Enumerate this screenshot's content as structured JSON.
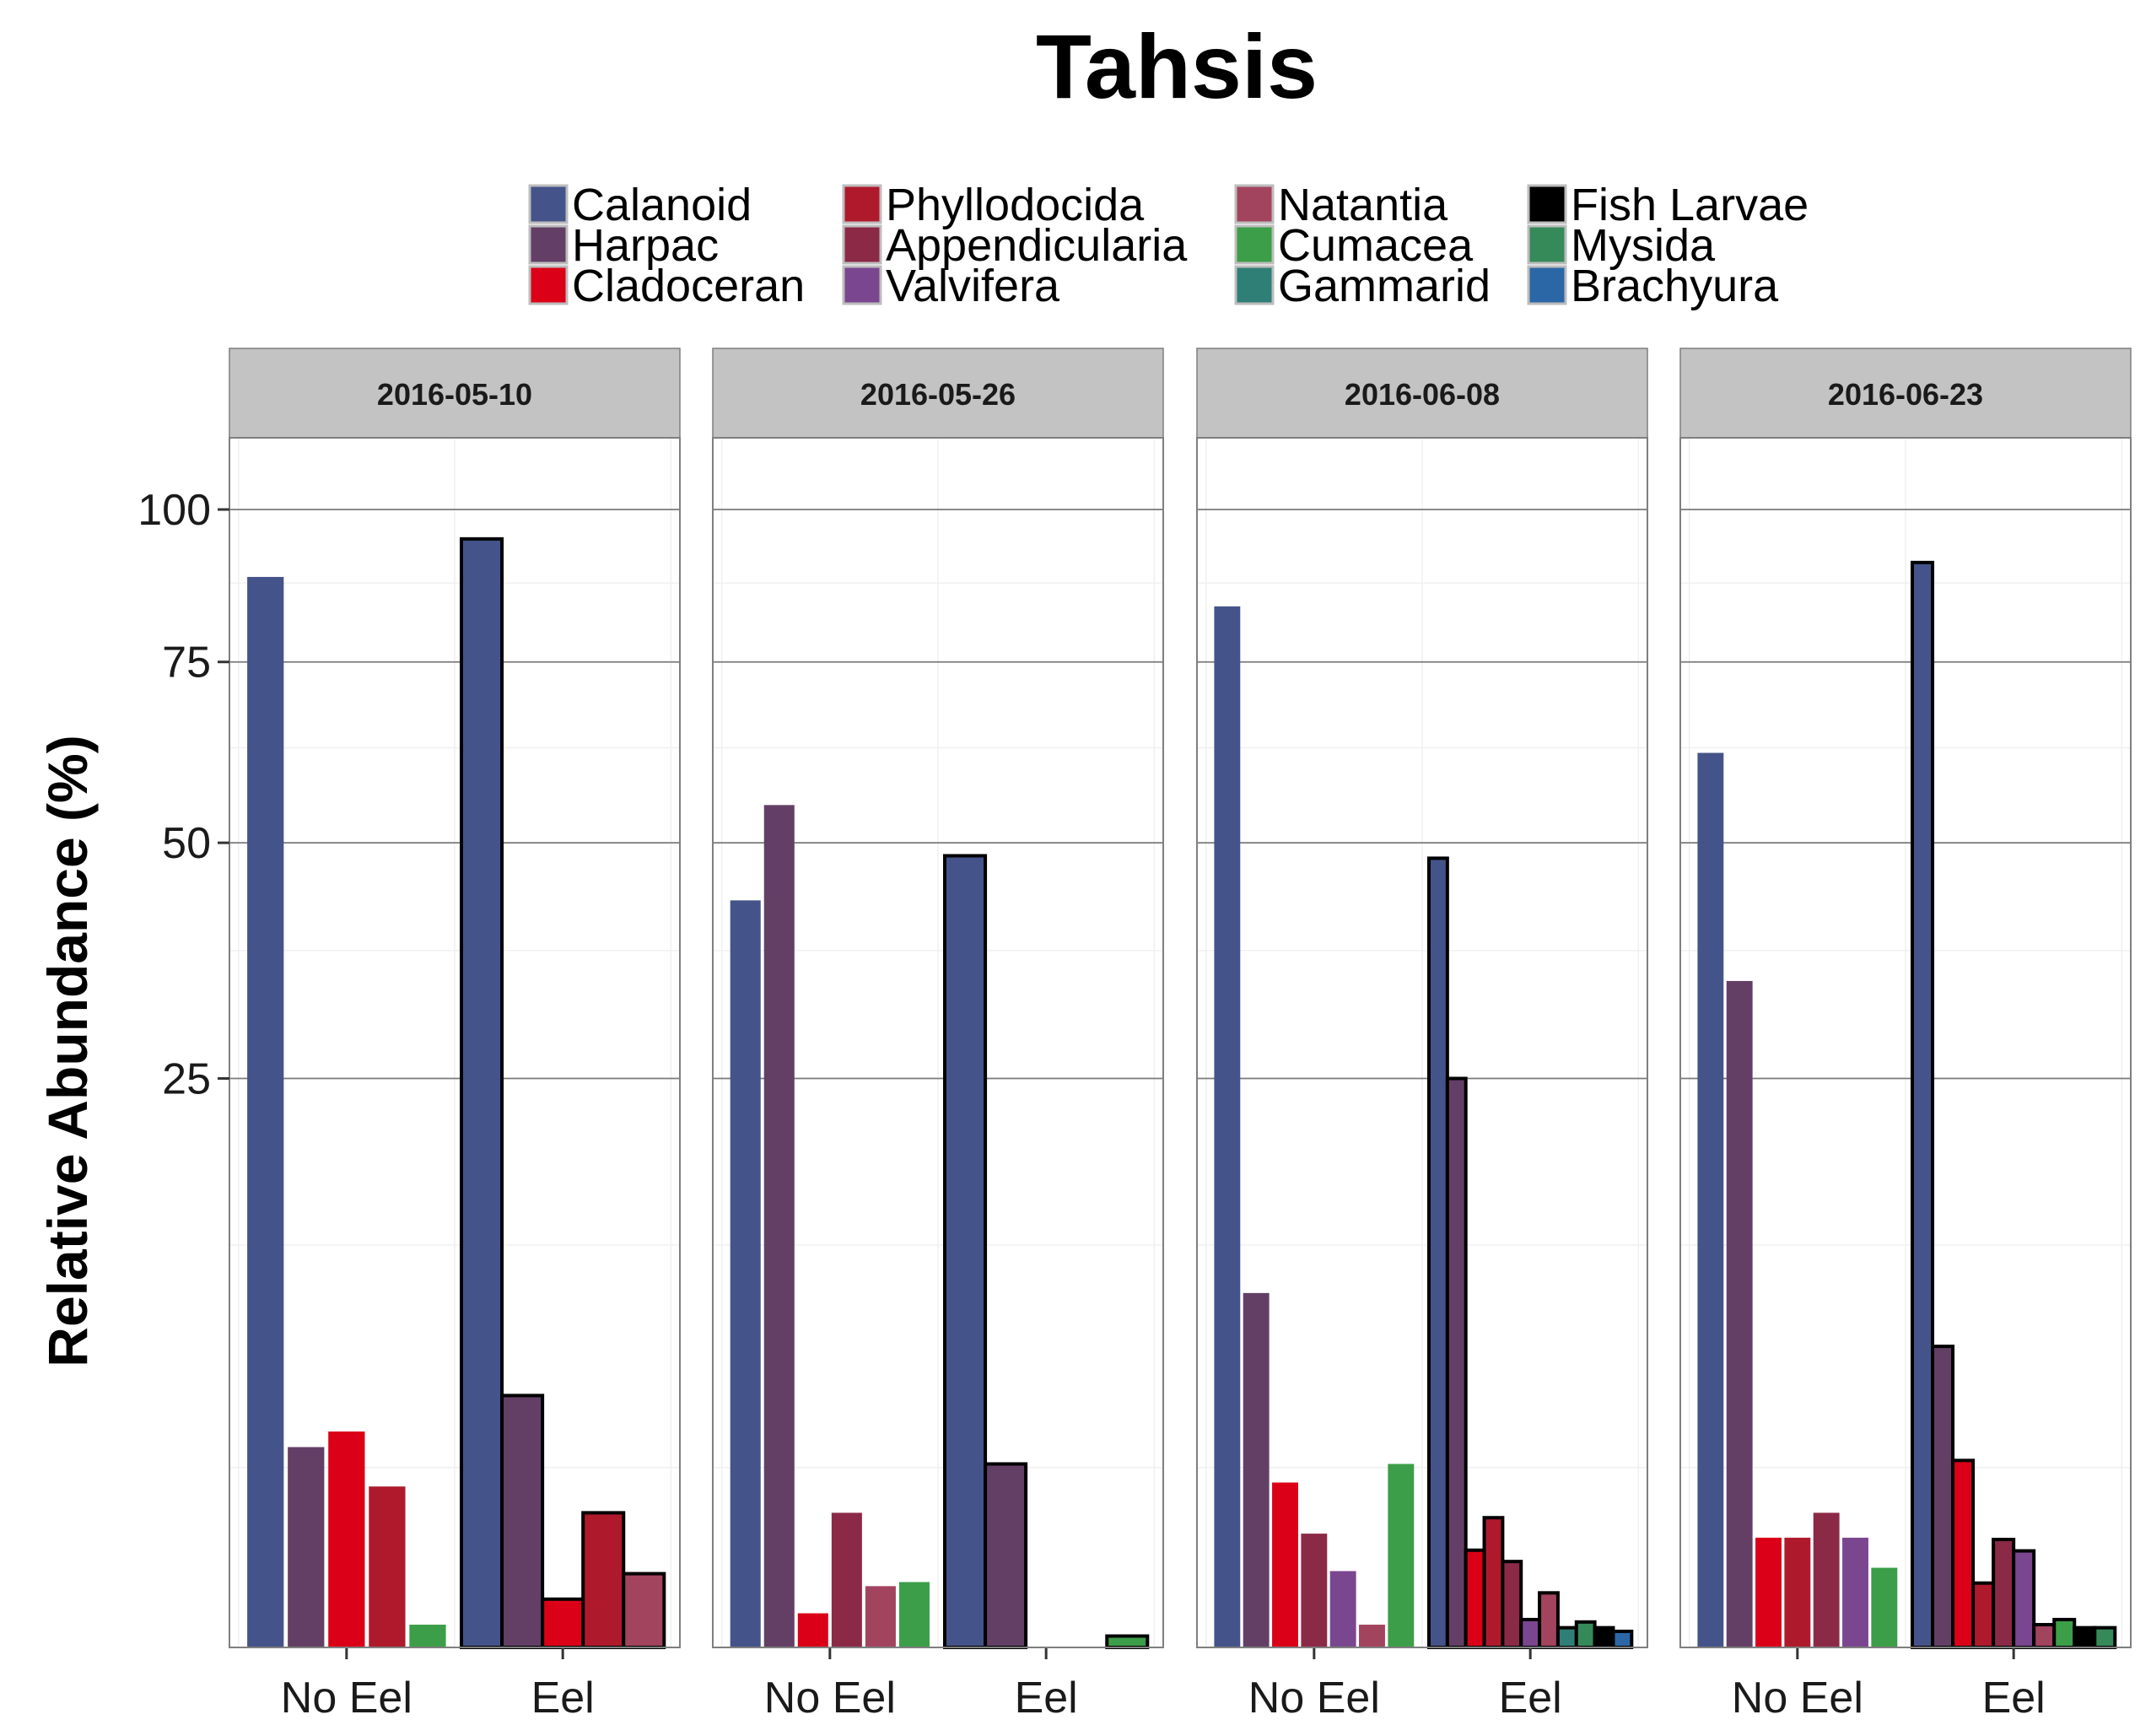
{
  "chart_data": {
    "type": "bar",
    "title": "Tahsis",
    "ylabel": "Relative Abundance (%)",
    "xlabel": "",
    "y_scale": "sqrt",
    "ylim": [
      0,
      113
    ],
    "y_ticks": [
      25,
      50,
      75,
      100
    ],
    "grid": true,
    "legend_position": "top",
    "categories": [
      "No Eel",
      "Eel"
    ],
    "taxa": [
      "Calanoid",
      "Harpac",
      "Cladoceran",
      "Phyllodocida",
      "Appendicularia",
      "Valvifera",
      "Natantia",
      "Cumacea",
      "Gammarid",
      "Fish Larvae",
      "Mysida",
      "Brachyura"
    ],
    "colors": {
      "Calanoid": "#44548a",
      "Harpac": "#633f66",
      "Cladoceran": "#db0018",
      "Phyllodocida": "#ae1a2c",
      "Appendicularia": "#8b2a47",
      "Valvifera": "#7b4690",
      "Natantia": "#a3445f",
      "Cumacea": "#3c9e48",
      "Gammarid": "#2f7f76",
      "Fish Larvae": "#000000",
      "Mysida": "#368a5a",
      "Brachyura": "#2b67a6"
    },
    "legend_columns": [
      [
        "Calanoid",
        "Harpac",
        "Cladoceran"
      ],
      [
        "Phyllodocida",
        "Appendicularia",
        "Valvifera"
      ],
      [
        "Natantia",
        "Cumacea",
        "Gammarid"
      ],
      [
        "Fish Larvae",
        "Mysida",
        "Brachyura"
      ]
    ],
    "panels": [
      {
        "label": "2016-05-10",
        "groups": [
          {
            "category": "No Eel",
            "outlined": false,
            "bars": [
              {
                "taxon": "Calanoid",
                "value": 88.5
              },
              {
                "taxon": "Harpac",
                "value": 3.1
              },
              {
                "taxon": "Cladoceran",
                "value": 3.6
              },
              {
                "taxon": "Phyllodocida",
                "value": 2.0
              },
              {
                "taxon": "Cumacea",
                "value": 0.04
              }
            ]
          },
          {
            "category": "Eel",
            "outlined": true,
            "bars": [
              {
                "taxon": "Calanoid",
                "value": 94.9
              },
              {
                "taxon": "Harpac",
                "value": 4.9
              },
              {
                "taxon": "Cladoceran",
                "value": 0.18
              },
              {
                "taxon": "Phyllodocida",
                "value": 1.4
              },
              {
                "taxon": "Natantia",
                "value": 0.42
              }
            ]
          }
        ]
      },
      {
        "label": "2016-05-26",
        "groups": [
          {
            "category": "No Eel",
            "outlined": false,
            "bars": [
              {
                "taxon": "Calanoid",
                "value": 43.1
              },
              {
                "taxon": "Harpac",
                "value": 54.8
              },
              {
                "taxon": "Cladoceran",
                "value": 0.09
              },
              {
                "taxon": "Appendicularia",
                "value": 1.4
              },
              {
                "taxon": "Natantia",
                "value": 0.29
              },
              {
                "taxon": "Cumacea",
                "value": 0.33
              }
            ]
          },
          {
            "category": "Eel",
            "outlined": true,
            "bars": [
              {
                "taxon": "Calanoid",
                "value": 48.4
              },
              {
                "taxon": "Harpac",
                "value": 2.6
              },
              {
                "taxon": "Cladoceran",
                "value": 0.0
              },
              {
                "taxon": "Phyllodocida",
                "value": 0.0
              },
              {
                "taxon": "Cumacea",
                "value": 0.01
              }
            ]
          }
        ]
      },
      {
        "label": "2016-06-08",
        "groups": [
          {
            "category": "No Eel",
            "outlined": false,
            "bars": [
              {
                "taxon": "Calanoid",
                "value": 83.7
              },
              {
                "taxon": "Harpac",
                "value": 9.7
              },
              {
                "taxon": "Cladoceran",
                "value": 2.1
              },
              {
                "taxon": "Appendicularia",
                "value": 1.0
              },
              {
                "taxon": "Valvifera",
                "value": 0.45
              },
              {
                "taxon": "Natantia",
                "value": 0.04
              },
              {
                "taxon": "Cumacea",
                "value": 2.6
              }
            ]
          },
          {
            "category": "Eel",
            "outlined": true,
            "bars": [
              {
                "taxon": "Calanoid",
                "value": 48.1
              },
              {
                "taxon": "Harpac",
                "value": 25.0
              },
              {
                "taxon": "Cladoceran",
                "value": 0.73
              },
              {
                "taxon": "Phyllodocida",
                "value": 1.3
              },
              {
                "taxon": "Appendicularia",
                "value": 0.57
              },
              {
                "taxon": "Valvifera",
                "value": 0.06
              },
              {
                "taxon": "Natantia",
                "value": 0.23
              },
              {
                "taxon": "Gammarid",
                "value": 0.03
              },
              {
                "taxon": "Mysida",
                "value": 0.05
              },
              {
                "taxon": "Fish Larvae",
                "value": 0.03
              },
              {
                "taxon": "Brachyura",
                "value": 0.02
              }
            ]
          }
        ]
      },
      {
        "label": "2016-06-23",
        "groups": [
          {
            "category": "No Eel",
            "outlined": false,
            "bars": [
              {
                "taxon": "Calanoid",
                "value": 61.8
              },
              {
                "taxon": "Harpac",
                "value": 34.3
              },
              {
                "taxon": "Cladoceran",
                "value": 0.93
              },
              {
                "taxon": "Phyllodocida",
                "value": 0.93
              },
              {
                "taxon": "Appendicularia",
                "value": 1.4
              },
              {
                "taxon": "Valvifera",
                "value": 0.93
              },
              {
                "taxon": "Cumacea",
                "value": 0.49
              }
            ]
          },
          {
            "category": "Eel",
            "outlined": true,
            "bars": [
              {
                "taxon": "Calanoid",
                "value": 90.9
              },
              {
                "taxon": "Harpac",
                "value": 7.0
              },
              {
                "taxon": "Cladoceran",
                "value": 2.7
              },
              {
                "taxon": "Phyllodocida",
                "value": 0.32
              },
              {
                "taxon": "Appendicularia",
                "value": 0.9
              },
              {
                "taxon": "Valvifera",
                "value": 0.72
              },
              {
                "taxon": "Natantia",
                "value": 0.04
              },
              {
                "taxon": "Cumacea",
                "value": 0.06
              },
              {
                "taxon": "Fish Larvae",
                "value": 0.03
              },
              {
                "taxon": "Mysida",
                "value": 0.03
              }
            ]
          }
        ]
      }
    ]
  }
}
